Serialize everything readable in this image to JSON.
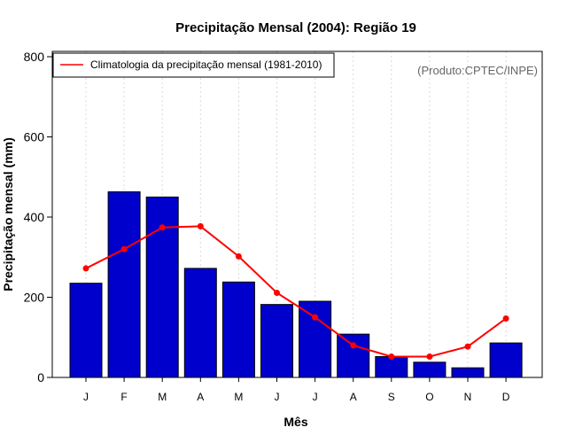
{
  "colors": {
    "bar_fill": "#0000cc",
    "bar_stroke": "#000000",
    "line": "#ff0000",
    "grid": "#d9d9d9",
    "source_text": "#666666"
  },
  "chart_data": {
    "type": "bar",
    "title": "Precipitação Mensal (2004): Região 19",
    "xlabel": "Mês",
    "ylabel": "Precipitação mensal (mm)",
    "ylim": [
      0,
      800
    ],
    "yticks": [
      0,
      200,
      400,
      600,
      800
    ],
    "categories": [
      "J",
      "F",
      "M",
      "A",
      "M",
      "J",
      "J",
      "A",
      "S",
      "O",
      "N",
      "D"
    ],
    "grid": "vertical dotted",
    "legend_position": "top-left",
    "source_note": "(Produto:CPTEC/INPE)",
    "series": [
      {
        "name": "Precipitação mensal (2004)",
        "kind": "bar",
        "values": [
          235,
          463,
          450,
          272,
          238,
          182,
          190,
          108,
          52,
          38,
          24,
          86
        ]
      },
      {
        "name": "Climatologia da precipitação mensal (1981-2010)",
        "kind": "line",
        "values": [
          272,
          320,
          374,
          377,
          302,
          211,
          150,
          80,
          52,
          52,
          77,
          147
        ]
      }
    ]
  }
}
